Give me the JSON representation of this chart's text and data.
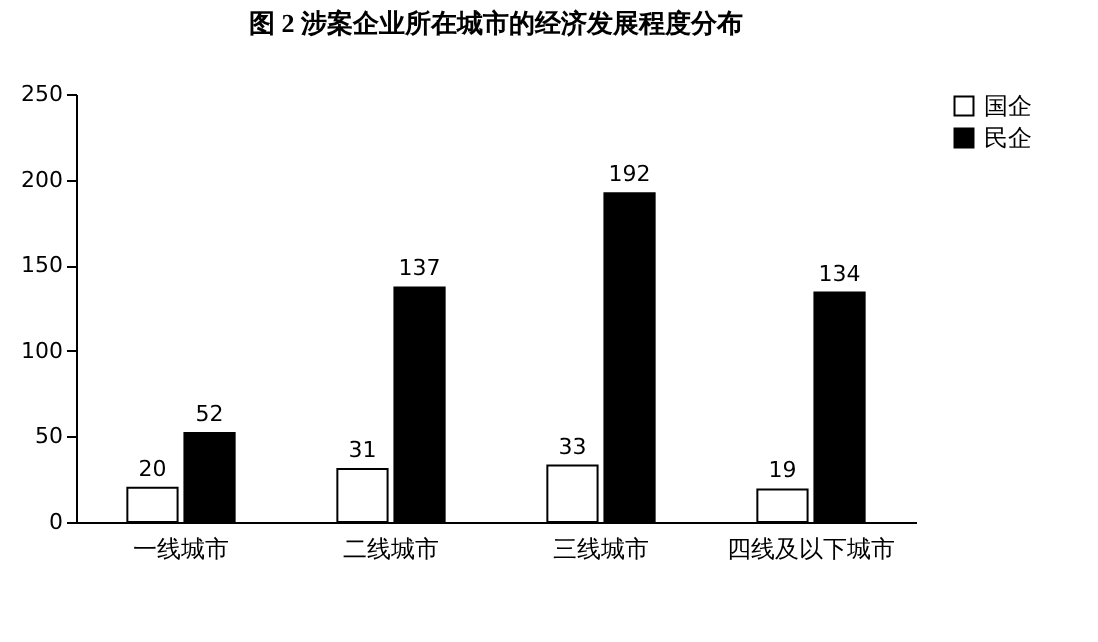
{
  "chart_data": {
    "type": "bar",
    "title": "图 2  涉案企业所在城市的经济发展程度分布",
    "categories": [
      "一线城市",
      "二线城市",
      "三线城市",
      "四线及以下城市"
    ],
    "series": [
      {
        "name": "国企",
        "color": "#ffffff",
        "values": [
          20,
          31,
          33,
          19
        ]
      },
      {
        "name": "民企",
        "color": "#000000",
        "values": [
          52,
          137,
          192,
          134
        ]
      }
    ],
    "ylim": [
      0,
      250
    ],
    "yticks": [
      0,
      50,
      100,
      150,
      200,
      250
    ],
    "grid": false,
    "legend": "right",
    "data_labels": true
  }
}
